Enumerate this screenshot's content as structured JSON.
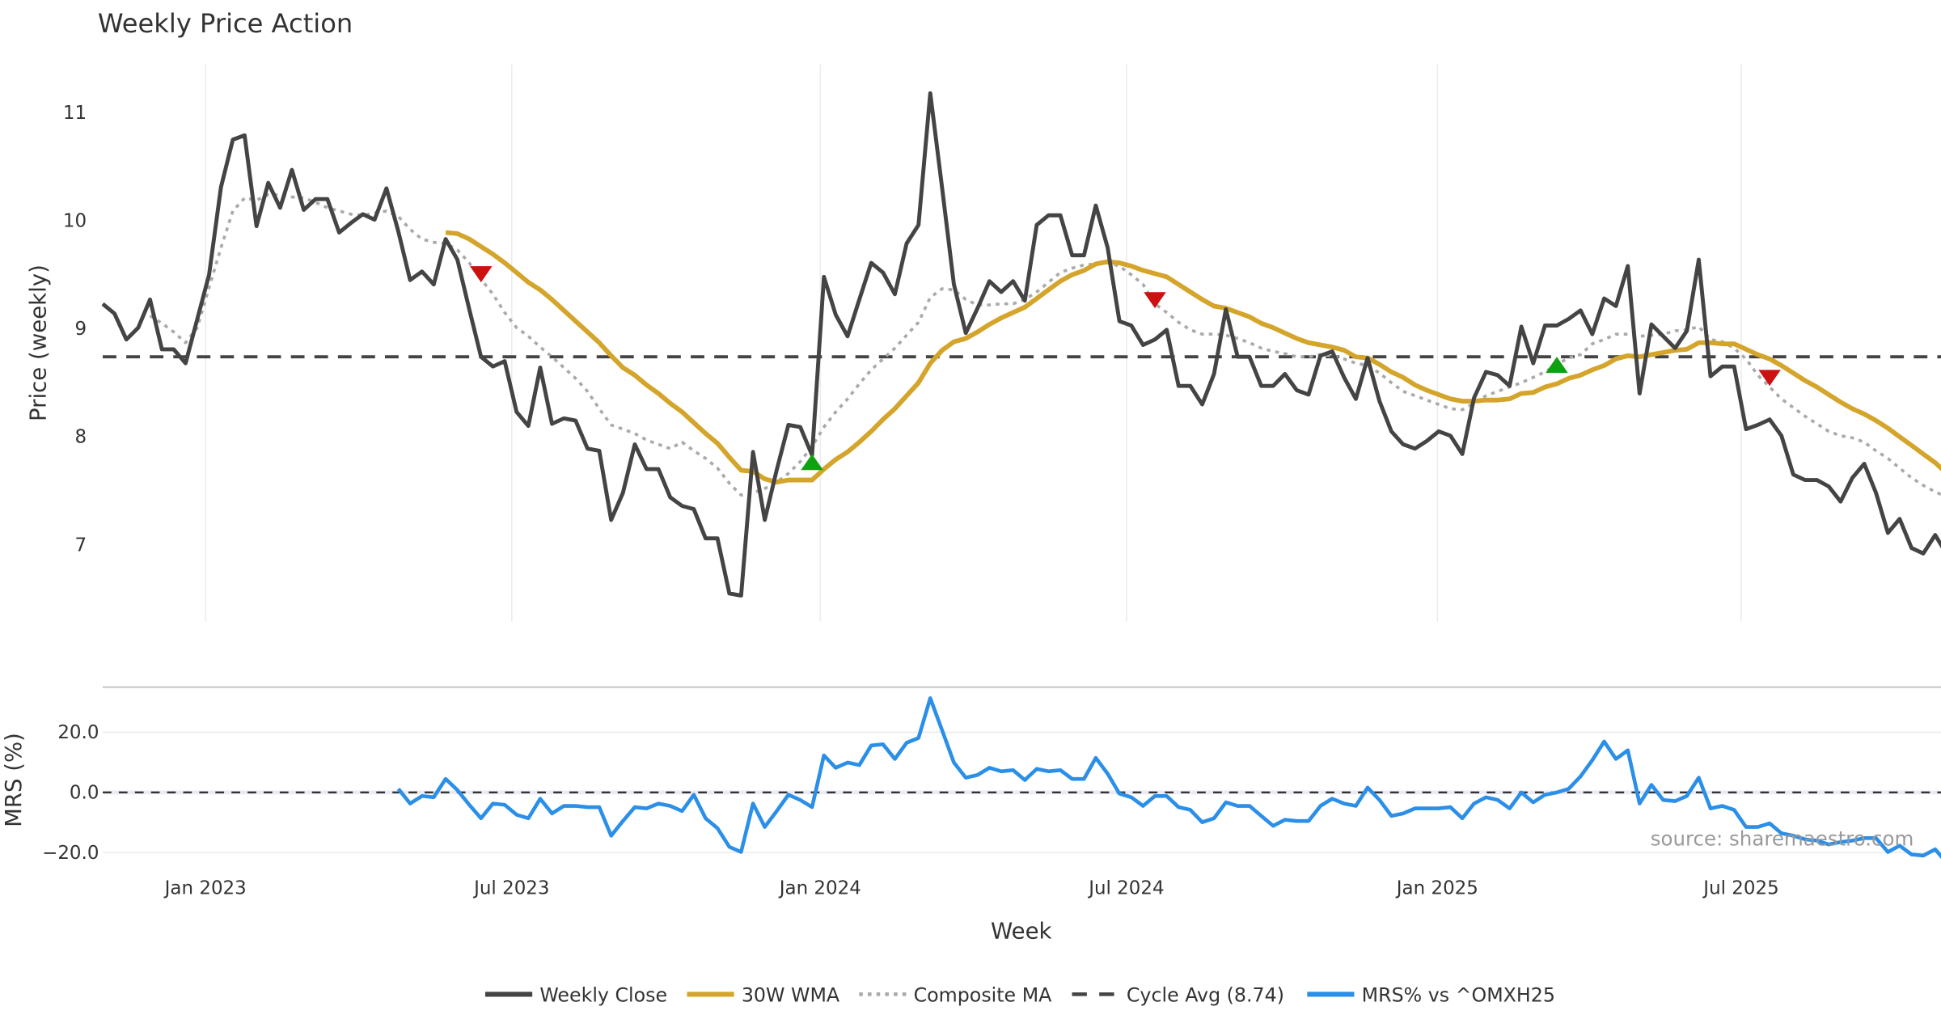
{
  "chart_data": [
    {
      "type": "line",
      "title": "Weekly Price Action",
      "ylabel": "Price (weekly)",
      "xlabel": "Week",
      "x_unit": "week index (weekly samples, first week ~Nov 2022)",
      "ylim": [
        6.3,
        11.5
      ],
      "yticks": [
        7,
        8,
        9,
        10,
        11
      ],
      "xticks": [
        {
          "week": 8.7,
          "label": "Jan 2023"
        },
        {
          "week": 34.6,
          "label": "Jul 2023"
        },
        {
          "week": 60.7,
          "label": "Jan 2024"
        },
        {
          "week": 86.6,
          "label": "Jul 2024"
        },
        {
          "week": 112.9,
          "label": "Jan 2025"
        },
        {
          "week": 138.6,
          "label": "Jul 2025"
        }
      ],
      "grid": "vertical",
      "series": [
        {
          "name": "Weekly Close",
          "color": "#444444",
          "start": 0,
          "values": [
            9.23,
            9.14,
            8.9,
            9.01,
            9.27,
            8.81,
            8.81,
            8.68,
            9.09,
            9.5,
            10.31,
            10.75,
            10.79,
            9.95,
            10.35,
            10.12,
            10.47,
            10.1,
            10.2,
            10.2,
            9.89,
            9.98,
            10.06,
            10.01,
            10.3,
            9.9,
            9.45,
            9.53,
            9.41,
            9.83,
            9.64,
            9.18,
            8.74,
            8.65,
            8.7,
            8.23,
            8.1,
            8.64,
            8.12,
            8.17,
            8.15,
            7.89,
            7.87,
            7.23,
            7.48,
            7.93,
            7.7,
            7.7,
            7.44,
            7.36,
            7.33,
            7.06,
            7.06,
            6.55,
            6.53,
            7.86,
            7.23,
            7.69,
            8.11,
            8.09,
            7.83,
            9.48,
            9.13,
            8.93,
            9.27,
            9.61,
            9.52,
            9.32,
            9.79,
            9.96,
            11.18,
            10.3,
            9.41,
            8.96,
            9.19,
            9.44,
            9.34,
            9.44,
            9.26,
            9.96,
            10.05,
            10.05,
            9.68,
            9.68,
            10.14,
            9.75,
            9.07,
            9.03,
            8.85,
            8.9,
            8.99,
            8.47,
            8.47,
            8.3,
            8.58,
            9.18,
            8.74,
            8.74,
            8.47,
            8.47,
            8.58,
            8.43,
            8.39,
            8.75,
            8.79,
            8.55,
            8.35,
            8.73,
            8.33,
            8.05,
            7.93,
            7.89,
            7.96,
            8.05,
            8.01,
            7.84,
            8.36,
            8.6,
            8.57,
            8.47,
            9.02,
            8.68,
            9.03,
            9.03,
            9.09,
            9.17,
            8.95,
            9.28,
            9.21,
            9.58,
            8.4,
            9.04,
            8.93,
            8.82,
            8.98,
            9.64,
            8.56,
            8.65,
            8.65,
            8.07,
            8.11,
            8.16,
            8.01,
            7.65,
            7.6,
            7.6,
            7.54,
            7.4,
            7.62,
            7.75,
            7.48,
            7.11,
            7.24,
            6.97,
            6.92,
            7.09,
            6.91
          ]
        },
        {
          "name": "30W WMA",
          "color": "#D4A52A",
          "start": 29,
          "values": [
            9.89,
            9.88,
            9.83,
            9.76,
            9.69,
            9.61,
            9.52,
            9.43,
            9.36,
            9.27,
            9.17,
            9.07,
            8.97,
            8.87,
            8.75,
            8.64,
            8.57,
            8.48,
            8.4,
            8.31,
            8.23,
            8.13,
            8.03,
            7.94,
            7.81,
            7.69,
            7.68,
            7.61,
            7.58,
            7.6,
            7.6,
            7.6,
            7.7,
            7.79,
            7.86,
            7.95,
            8.05,
            8.16,
            8.26,
            8.38,
            8.5,
            8.68,
            8.8,
            8.88,
            8.91,
            8.97,
            9.04,
            9.1,
            9.15,
            9.2,
            9.28,
            9.36,
            9.44,
            9.5,
            9.54,
            9.6,
            9.62,
            9.61,
            9.58,
            9.54,
            9.51,
            9.48,
            9.41,
            9.34,
            9.27,
            9.21,
            9.19,
            9.15,
            9.11,
            9.05,
            9.01,
            8.96,
            8.91,
            8.87,
            8.85,
            8.83,
            8.8,
            8.74,
            8.73,
            8.67,
            8.6,
            8.55,
            8.48,
            8.43,
            8.39,
            8.35,
            8.33,
            8.33,
            8.34,
            8.34,
            8.35,
            8.4,
            8.41,
            8.46,
            8.49,
            8.54,
            8.57,
            8.62,
            8.66,
            8.72,
            8.75,
            8.74,
            8.76,
            8.78,
            8.8,
            8.81,
            8.87,
            8.87,
            8.86,
            8.86,
            8.81,
            8.76,
            8.72,
            8.66,
            8.59,
            8.52,
            8.46,
            8.39,
            8.32,
            8.26,
            8.21,
            8.15,
            8.08,
            8.0,
            7.92,
            7.84,
            7.76,
            7.66
          ]
        },
        {
          "name": "Composite MA",
          "color": "#AAAAAA",
          "start": 4,
          "values": [
            9.12,
            9.05,
            8.97,
            8.87,
            9.01,
            9.38,
            9.75,
            10.09,
            10.21,
            10.19,
            10.24,
            10.24,
            10.22,
            10.21,
            10.17,
            10.12,
            10.09,
            10.06,
            10.05,
            10.07,
            10.09,
            10.04,
            9.92,
            9.83,
            9.8,
            9.79,
            9.73,
            9.61,
            9.46,
            9.32,
            9.15,
            9.01,
            8.93,
            8.83,
            8.74,
            8.64,
            8.54,
            8.42,
            8.26,
            8.11,
            8.07,
            8.03,
            7.97,
            7.93,
            7.89,
            7.95,
            7.87,
            7.8,
            7.71,
            7.57,
            7.46,
            7.48,
            7.52,
            7.58,
            7.66,
            7.77,
            7.91,
            8.09,
            8.23,
            8.35,
            8.49,
            8.62,
            8.72,
            8.82,
            8.94,
            9.06,
            9.29,
            9.37,
            9.36,
            9.27,
            9.22,
            9.22,
            9.23,
            9.23,
            9.27,
            9.34,
            9.43,
            9.52,
            9.56,
            9.59,
            9.6,
            9.61,
            9.58,
            9.5,
            9.41,
            9.23,
            9.15,
            9.06,
            8.99,
            8.95,
            8.95,
            8.94,
            8.91,
            8.87,
            8.82,
            8.79,
            8.77,
            8.74,
            8.74,
            8.76,
            8.75,
            8.72,
            8.68,
            8.66,
            8.59,
            8.5,
            8.42,
            8.38,
            8.34,
            8.3,
            8.26,
            8.25,
            8.31,
            8.38,
            8.42,
            8.46,
            8.5,
            8.55,
            8.6,
            8.67,
            8.73,
            8.76,
            8.86,
            8.9,
            8.95,
            8.95,
            8.93,
            8.94,
            8.95,
            8.98,
            8.99,
            9.02,
            8.9,
            8.88,
            8.82,
            8.72,
            8.57,
            8.46,
            8.35,
            8.27,
            8.19,
            8.12,
            8.05,
            8.01,
            7.99,
            7.95,
            7.87,
            7.8,
            7.71,
            7.62,
            7.55,
            7.49,
            7.44
          ]
        }
      ],
      "reference_line": {
        "name": "Cycle Avg (8.74)",
        "value": 8.74,
        "color": "#444444"
      },
      "signals": [
        {
          "type": "sell",
          "week": 32,
          "price": 9.51,
          "color": "#CC1111"
        },
        {
          "type": "buy",
          "week": 60,
          "price": 7.76,
          "color": "#11A011"
        },
        {
          "type": "sell",
          "week": 89,
          "price": 9.27,
          "color": "#CC1111"
        },
        {
          "type": "buy",
          "week": 123,
          "price": 8.66,
          "color": "#11A011"
        },
        {
          "type": "sell",
          "week": 141,
          "price": 8.55,
          "color": "#CC1111"
        }
      ]
    },
    {
      "type": "line",
      "ylabel": "MRS (%)",
      "ylim": [
        -27,
        35
      ],
      "yticks": [
        {
          "value": 20,
          "label": "20.0"
        },
        {
          "value": 0,
          "label": "0.0"
        },
        {
          "value": -20,
          "label": "−20.0"
        }
      ],
      "series": [
        {
          "name": "MRS% vs ^OMXH25",
          "color": "#2B8FE8",
          "start": 25,
          "values": [
            1.2,
            -3.7,
            -1.2,
            -1.6,
            4.5,
            0.8,
            -4.1,
            -8.6,
            -3.7,
            -4.1,
            -7.4,
            -8.6,
            -2.1,
            -7.0,
            -4.5,
            -4.5,
            -4.9,
            -4.9,
            -14.4,
            -9.5,
            -4.9,
            -5.3,
            -3.7,
            -4.5,
            -6.2,
            -0.8,
            -8.6,
            -11.9,
            -18.1,
            -19.8,
            -3.7,
            -11.5,
            -6.2,
            -0.8,
            -2.5,
            -4.9,
            12.3,
            8.2,
            9.9,
            9.1,
            15.6,
            16.0,
            11.1,
            16.5,
            18.1,
            31.3,
            20.6,
            9.9,
            4.9,
            5.8,
            8.2,
            7.0,
            7.4,
            4.1,
            7.8,
            7.0,
            7.4,
            4.5,
            4.5,
            11.5,
            6.2,
            -0.4,
            -1.6,
            -4.5,
            -1.2,
            -1.2,
            -4.9,
            -5.8,
            -9.9,
            -8.6,
            -3.3,
            -4.5,
            -4.5,
            -7.8,
            -11.1,
            -9.1,
            -9.5,
            -9.5,
            -4.5,
            -2.1,
            -3.7,
            -4.5,
            1.6,
            -2.5,
            -7.8,
            -7.0,
            -5.3,
            -5.3,
            -5.3,
            -4.9,
            -8.6,
            -3.7,
            -1.6,
            -2.5,
            -5.3,
            0.0,
            -3.3,
            -0.8,
            0.0,
            1.2,
            5.3,
            10.7,
            16.9,
            11.1,
            14.0,
            -3.7,
            2.5,
            -2.5,
            -2.9,
            -1.2,
            4.9,
            -5.3,
            -4.5,
            -5.8,
            -11.5,
            -11.5,
            -10.3,
            -13.6,
            -14.4,
            -15.6,
            -16.0,
            -17.3,
            -16.5,
            -16.0,
            -15.2,
            -15.2,
            -19.8,
            -17.7,
            -20.6,
            -21.0,
            -18.9,
            -23.5
          ]
        }
      ],
      "zero_line": 0
    }
  ],
  "legend": {
    "placement": "bottom-center",
    "items": [
      {
        "label": "Weekly Close",
        "style": "solid",
        "color": "#444444"
      },
      {
        "label": "30W WMA",
        "style": "solid",
        "color": "#D4A52A"
      },
      {
        "label": "Composite MA",
        "style": "dotted",
        "color": "#AAAAAA"
      },
      {
        "label": "Cycle Avg (8.74)",
        "style": "dashed",
        "color": "#444444"
      },
      {
        "label": "MRS% vs ^OMXH25",
        "style": "solid",
        "color": "#2B8FE8"
      }
    ]
  },
  "source": "source: sharemaestro.com"
}
